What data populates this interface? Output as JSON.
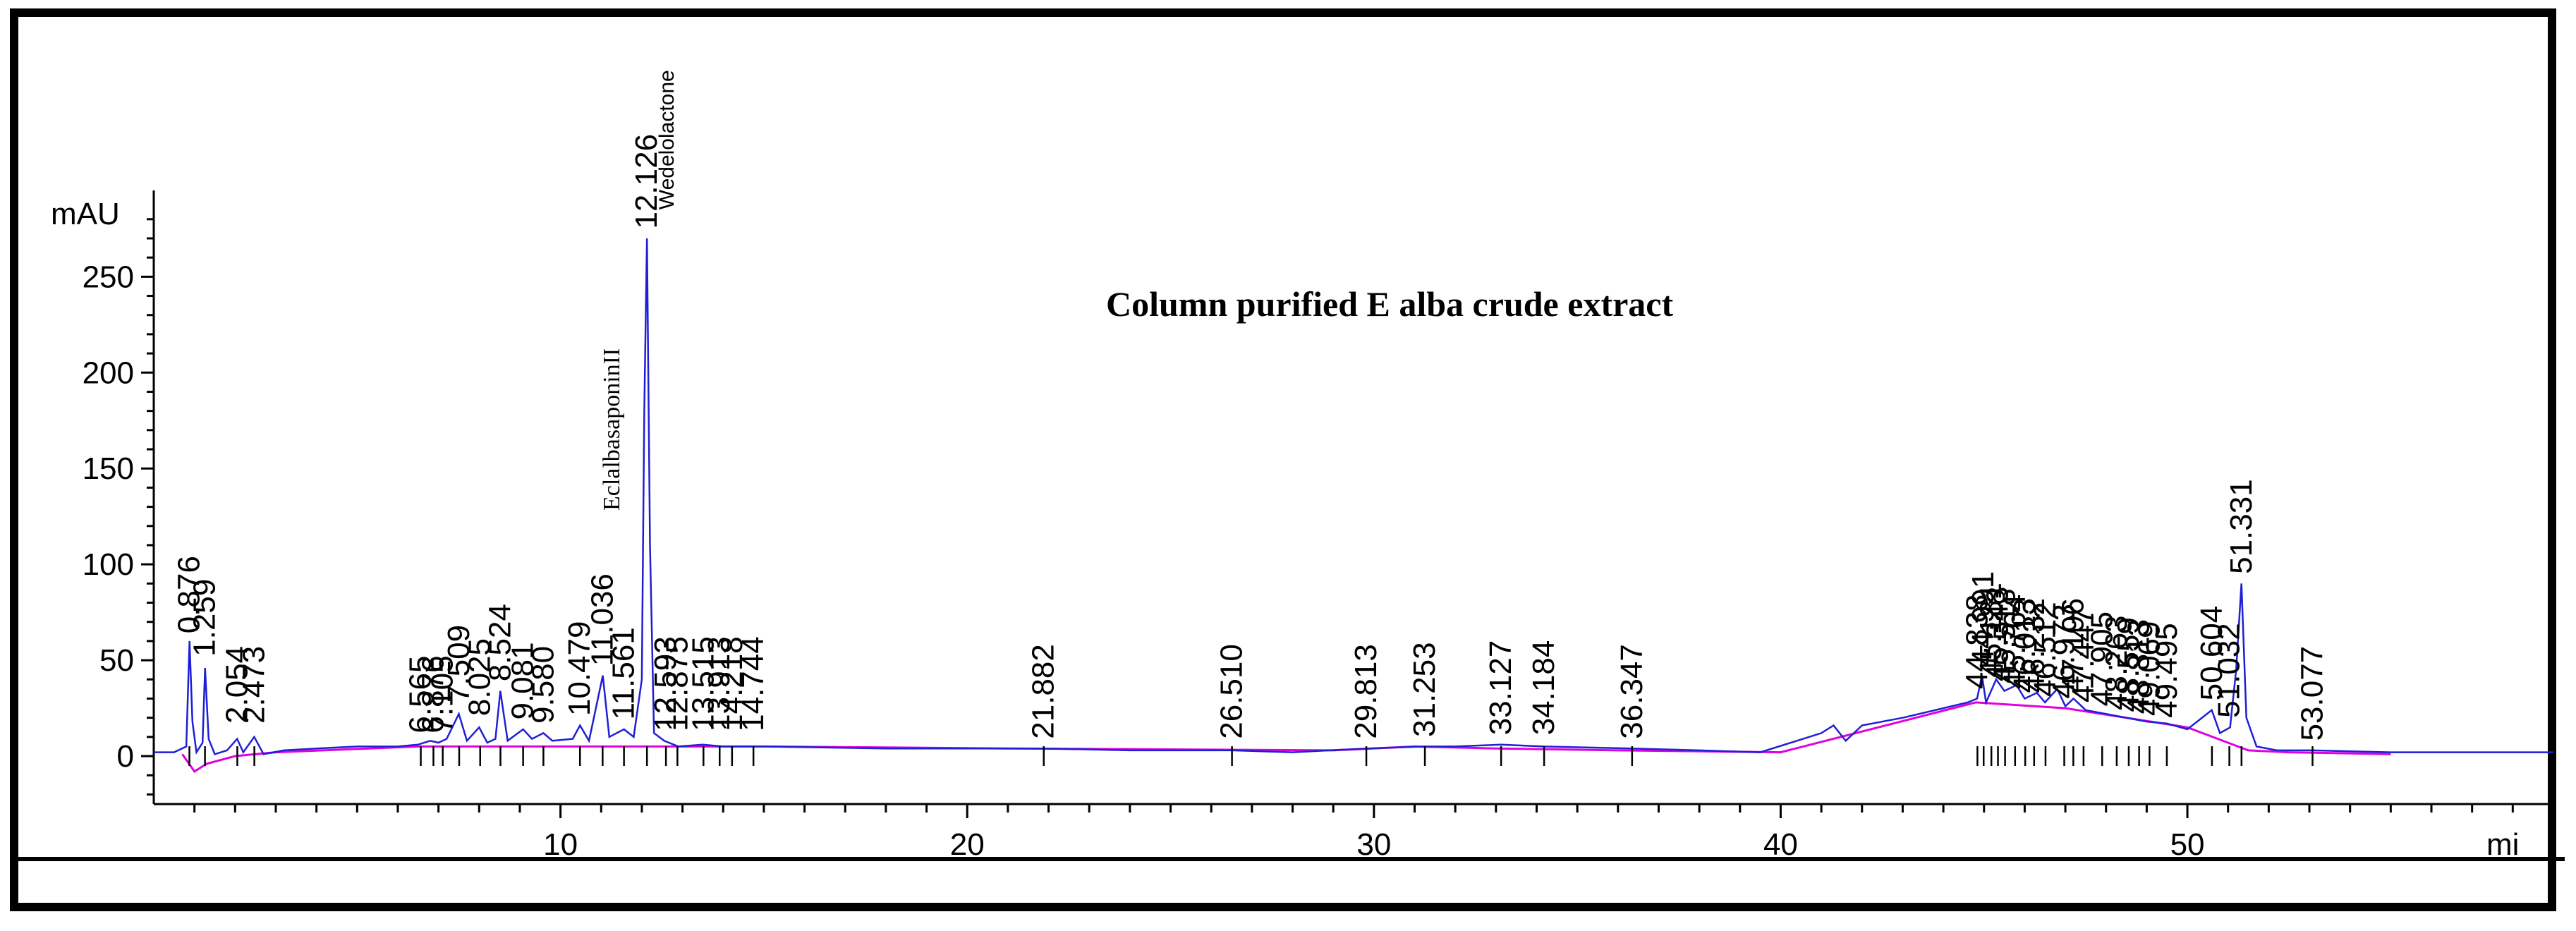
{
  "chart_data": {
    "type": "line",
    "title": "Column purified E alba crude extract",
    "ylabel": "mAU",
    "xlabel": "mi",
    "xlim": [
      0,
      59
    ],
    "ylim": [
      -25,
      295
    ],
    "y_ticks": [
      0,
      50,
      100,
      150,
      200,
      250
    ],
    "x_ticks": [
      10,
      20,
      30,
      40,
      50
    ],
    "colors": {
      "signal": "#1f1fd6",
      "baseline": "#e000e0",
      "axis": "#000000"
    },
    "series": [
      {
        "role": "signal",
        "points": [
          [
            0,
            2
          ],
          [
            0.5,
            2
          ],
          [
            0.8,
            5
          ],
          [
            0.88,
            60
          ],
          [
            0.95,
            18
          ],
          [
            1.05,
            2
          ],
          [
            1.2,
            7
          ],
          [
            1.26,
            46
          ],
          [
            1.35,
            9
          ],
          [
            1.5,
            1
          ],
          [
            1.8,
            3
          ],
          [
            2.05,
            9
          ],
          [
            2.2,
            2
          ],
          [
            2.47,
            10
          ],
          [
            2.7,
            1
          ],
          [
            3.2,
            3
          ],
          [
            4,
            4
          ],
          [
            5,
            5
          ],
          [
            6,
            5
          ],
          [
            6.5,
            6
          ],
          [
            6.8,
            8
          ],
          [
            7.0,
            7
          ],
          [
            7.2,
            9
          ],
          [
            7.5,
            22
          ],
          [
            7.7,
            8
          ],
          [
            8.0,
            15
          ],
          [
            8.2,
            7
          ],
          [
            8.4,
            9
          ],
          [
            8.52,
            34
          ],
          [
            8.7,
            8
          ],
          [
            9.08,
            14
          ],
          [
            9.3,
            9
          ],
          [
            9.58,
            12
          ],
          [
            9.8,
            8
          ],
          [
            10.3,
            9
          ],
          [
            10.48,
            16
          ],
          [
            10.7,
            8
          ],
          [
            11.04,
            42
          ],
          [
            11.2,
            10
          ],
          [
            11.56,
            14
          ],
          [
            11.8,
            10
          ],
          [
            12.0,
            40
          ],
          [
            12.06,
            180
          ],
          [
            12.126,
            270
          ],
          [
            12.2,
            110
          ],
          [
            12.3,
            12
          ],
          [
            12.55,
            8
          ],
          [
            12.9,
            5
          ],
          [
            13.5,
            6
          ],
          [
            14,
            5
          ],
          [
            15,
            5
          ],
          [
            18,
            4
          ],
          [
            21.88,
            4
          ],
          [
            24,
            3
          ],
          [
            26.5,
            3
          ],
          [
            28,
            2
          ],
          [
            29.81,
            4
          ],
          [
            31.25,
            5
          ],
          [
            32,
            5
          ],
          [
            33.13,
            6
          ],
          [
            34.18,
            5
          ],
          [
            36.35,
            4
          ],
          [
            38,
            3
          ],
          [
            39.5,
            2
          ],
          [
            41,
            12
          ],
          [
            41.3,
            16
          ],
          [
            41.6,
            8
          ],
          [
            42,
            16
          ],
          [
            43,
            20
          ],
          [
            44,
            25
          ],
          [
            44.6,
            28
          ],
          [
            44.83,
            30
          ],
          [
            44.95,
            42
          ],
          [
            45.05,
            28
          ],
          [
            45.3,
            40
          ],
          [
            45.5,
            34
          ],
          [
            45.8,
            37
          ],
          [
            46.0,
            30
          ],
          [
            46.3,
            33
          ],
          [
            46.5,
            28
          ],
          [
            46.8,
            35
          ],
          [
            47.0,
            26
          ],
          [
            47.2,
            30
          ],
          [
            47.5,
            24
          ],
          [
            48,
            22
          ],
          [
            48.5,
            20
          ],
          [
            49,
            18
          ],
          [
            49.5,
            17
          ],
          [
            50,
            14
          ],
          [
            50.6,
            24
          ],
          [
            50.8,
            12
          ],
          [
            51.05,
            15
          ],
          [
            51.2,
            45
          ],
          [
            51.33,
            90
          ],
          [
            51.45,
            20
          ],
          [
            51.7,
            5
          ],
          [
            52.2,
            3
          ],
          [
            53.08,
            3
          ],
          [
            55,
            2
          ],
          [
            59,
            2
          ]
        ]
      },
      {
        "role": "baseline",
        "points": [
          [
            0.7,
            1
          ],
          [
            1.0,
            -8
          ],
          [
            1.3,
            -4
          ],
          [
            2.0,
            0
          ],
          [
            3.0,
            2
          ],
          [
            6.5,
            5
          ],
          [
            12.0,
            5
          ],
          [
            15,
            5
          ],
          [
            21,
            4
          ],
          [
            29,
            3
          ],
          [
            31,
            5
          ],
          [
            33,
            4
          ],
          [
            36,
            3
          ],
          [
            40,
            2
          ],
          [
            44.8,
            28
          ],
          [
            47,
            25
          ],
          [
            50,
            15
          ],
          [
            51.5,
            3
          ],
          [
            52.5,
            2
          ],
          [
            55,
            1
          ]
        ]
      }
    ],
    "peak_labels": [
      {
        "x": 0.876,
        "label": "0.876",
        "y": 61
      },
      {
        "x": 1.259,
        "label": "1.259",
        "y": 49
      },
      {
        "x": 2.054,
        "label": "2.054",
        "y": 14
      },
      {
        "x": 2.473,
        "label": "2.473",
        "y": 14
      },
      {
        "x": 6.565,
        "label": "6.565",
        "y": 9
      },
      {
        "x": 6.876,
        "label": "6.876",
        "y": 9
      },
      {
        "x": 7.105,
        "label": "7.105",
        "y": 9
      },
      {
        "x": 7.509,
        "label": "7.509",
        "y": 25
      },
      {
        "x": 8.025,
        "label": "8.025",
        "y": 18
      },
      {
        "x": 8.524,
        "label": "8.524",
        "y": 36
      },
      {
        "x": 9.081,
        "label": "9.081",
        "y": 16
      },
      {
        "x": 9.58,
        "label": "9.580",
        "y": 14
      },
      {
        "x": 10.479,
        "label": "10.479",
        "y": 18
      },
      {
        "x": 11.036,
        "label": "11.036",
        "y": 44
      },
      {
        "x": 11.561,
        "label": "11.561",
        "y": 16
      },
      {
        "x": 12.126,
        "label": "12.126",
        "y": 272
      },
      {
        "x": 12.593,
        "label": "12.593",
        "y": 10
      },
      {
        "x": 12.875,
        "label": "12.875",
        "y": 10
      },
      {
        "x": 13.515,
        "label": "13.515",
        "y": 10
      },
      {
        "x": 13.913,
        "label": "13.913",
        "y": 10
      },
      {
        "x": 14.218,
        "label": "14.218",
        "y": 10
      },
      {
        "x": 14.744,
        "label": "14.744",
        "y": 10
      },
      {
        "x": 21.882,
        "label": "21.882",
        "y": 6
      },
      {
        "x": 26.51,
        "label": "26.510",
        "y": 6
      },
      {
        "x": 29.813,
        "label": "29.813",
        "y": 6
      },
      {
        "x": 31.253,
        "label": "31.253",
        "y": 7
      },
      {
        "x": 33.127,
        "label": "33.127",
        "y": 8
      },
      {
        "x": 34.184,
        "label": "34.184",
        "y": 8
      },
      {
        "x": 36.347,
        "label": "36.347",
        "y": 6
      },
      {
        "x": 44.838,
        "label": "44.838",
        "y": 32
      },
      {
        "x": 44.991,
        "label": "44.991",
        "y": 44
      },
      {
        "x": 45.181,
        "label": "45.181",
        "y": 38
      },
      {
        "x": 45.343,
        "label": "45.343",
        "y": 36
      },
      {
        "x": 45.518,
        "label": "45.518",
        "y": 35
      },
      {
        "x": 45.764,
        "label": "45.764",
        "y": 32
      },
      {
        "x": 46.013,
        "label": "46.013",
        "y": 30
      },
      {
        "x": 46.232,
        "label": "46.232",
        "y": 30
      },
      {
        "x": 46.512,
        "label": "46.512",
        "y": 28
      },
      {
        "x": 46.973,
        "label": "46.973",
        "y": 27
      },
      {
        "x": 47.196,
        "label": "47.196",
        "y": 30
      },
      {
        "x": 47.447,
        "label": "47.447",
        "y": 25
      },
      {
        "x": 47.905,
        "label": "47.905",
        "y": 23
      },
      {
        "x": 48.263,
        "label": "48.263",
        "y": 21
      },
      {
        "x": 48.559,
        "label": "48.559",
        "y": 20
      },
      {
        "x": 48.813,
        "label": "48.813",
        "y": 19
      },
      {
        "x": 49.069,
        "label": "49.069",
        "y": 18
      },
      {
        "x": 49.495,
        "label": "49.495",
        "y": 17
      },
      {
        "x": 50.604,
        "label": "50.604",
        "y": 26
      },
      {
        "x": 51.032,
        "label": "51.032",
        "y": 17
      },
      {
        "x": 51.331,
        "label": "51.331",
        "y": 92
      },
      {
        "x": 53.077,
        "label": "53.077",
        "y": 5
      }
    ],
    "compound_labels": [
      {
        "x": 11.45,
        "label": "EclalbasaponinII",
        "y": 128
      },
      {
        "x": 12.78,
        "label": "Wedelolactone",
        "y": 285
      }
    ]
  }
}
